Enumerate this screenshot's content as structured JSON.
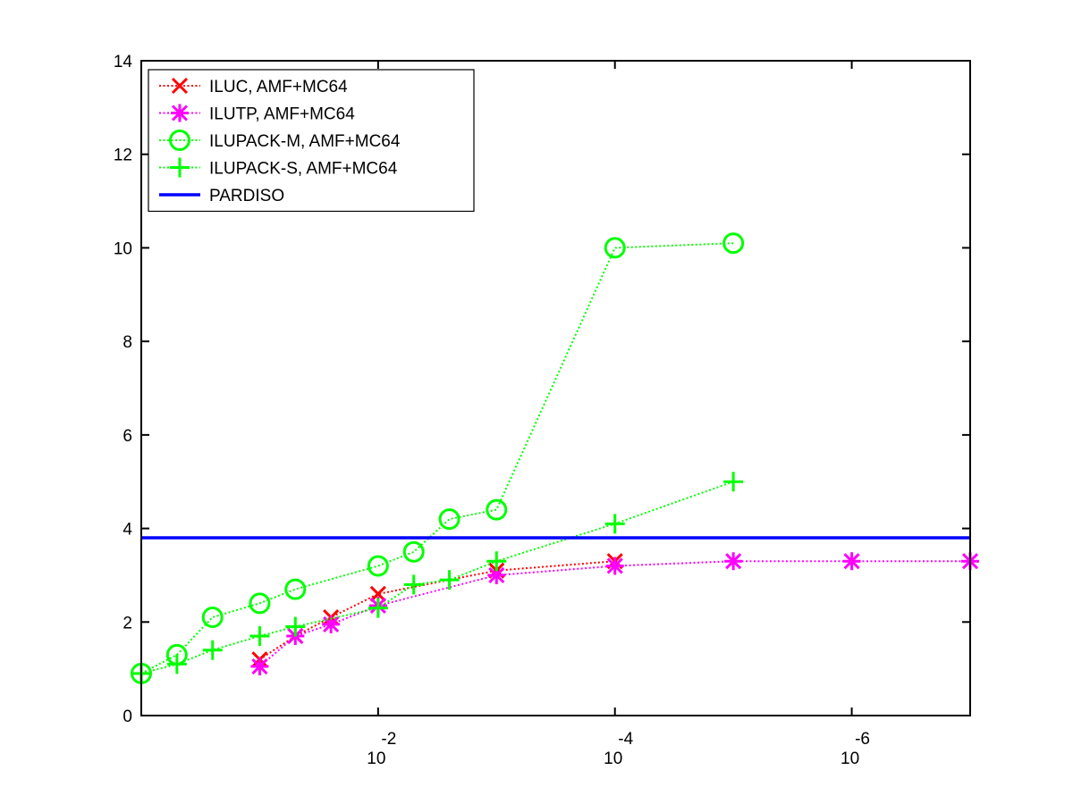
{
  "chart_data": {
    "type": "line",
    "x_scale": "log-reversed",
    "xlim": [
      1,
      1e-07
    ],
    "ylim": [
      0,
      14
    ],
    "y_ticks": [
      0,
      2,
      4,
      6,
      8,
      10,
      12,
      14
    ],
    "x_ticks": [
      {
        "value": 0.01,
        "base": "10",
        "exp": "-2"
      },
      {
        "value": 0.0001,
        "base": "10",
        "exp": "-4"
      },
      {
        "value": 1e-06,
        "base": "10",
        "exp": "-6"
      }
    ],
    "legend_position": "top-left",
    "series": [
      {
        "name": "ILUC, AMF+MC64",
        "color": "#ff0000",
        "marker": "x",
        "line": "dotted",
        "points": [
          [
            0.1,
            1.2
          ],
          [
            0.05,
            1.7
          ],
          [
            0.025,
            2.1
          ],
          [
            0.01,
            2.6
          ],
          [
            0.001,
            3.1
          ],
          [
            0.0001,
            3.3
          ]
        ]
      },
      {
        "name": "ILUTP, AMF+MC64",
        "color": "#ff00ff",
        "marker": "star",
        "line": "dotted",
        "points": [
          [
            0.1,
            1.05
          ],
          [
            0.05,
            1.7
          ],
          [
            0.025,
            1.95
          ],
          [
            0.01,
            2.35
          ],
          [
            0.001,
            3.0
          ],
          [
            0.0001,
            3.2
          ],
          [
            1e-05,
            3.3
          ],
          [
            1e-06,
            3.3
          ],
          [
            1e-07,
            3.3
          ]
        ]
      },
      {
        "name": "ILUPACK-M, AMF+MC64",
        "color": "#00ff00",
        "marker": "circle",
        "line": "dotted",
        "points": [
          [
            1,
            0.9
          ],
          [
            0.5,
            1.3
          ],
          [
            0.25,
            2.1
          ],
          [
            0.1,
            2.4
          ],
          [
            0.05,
            2.7
          ],
          [
            0.01,
            3.2
          ],
          [
            0.005,
            3.5
          ],
          [
            0.0025,
            4.2
          ],
          [
            0.001,
            4.4
          ],
          [
            0.0001,
            10.0
          ],
          [
            1e-05,
            10.1
          ]
        ]
      },
      {
        "name": "ILUPACK-S, AMF+MC64",
        "color": "#00ff00",
        "marker": "plus",
        "line": "dotted",
        "points": [
          [
            1,
            0.9
          ],
          [
            0.5,
            1.1
          ],
          [
            0.25,
            1.4
          ],
          [
            0.1,
            1.7
          ],
          [
            0.05,
            1.9
          ],
          [
            0.01,
            2.3
          ],
          [
            0.005,
            2.8
          ],
          [
            0.0025,
            2.9
          ],
          [
            0.001,
            3.3
          ],
          [
            0.0001,
            4.1
          ],
          [
            1e-05,
            5.0
          ]
        ]
      },
      {
        "name": "PARDISO",
        "color": "#0000ff",
        "marker": "none",
        "line": "solid",
        "points": [
          [
            1,
            3.8
          ],
          [
            1e-07,
            3.8
          ]
        ]
      }
    ]
  }
}
